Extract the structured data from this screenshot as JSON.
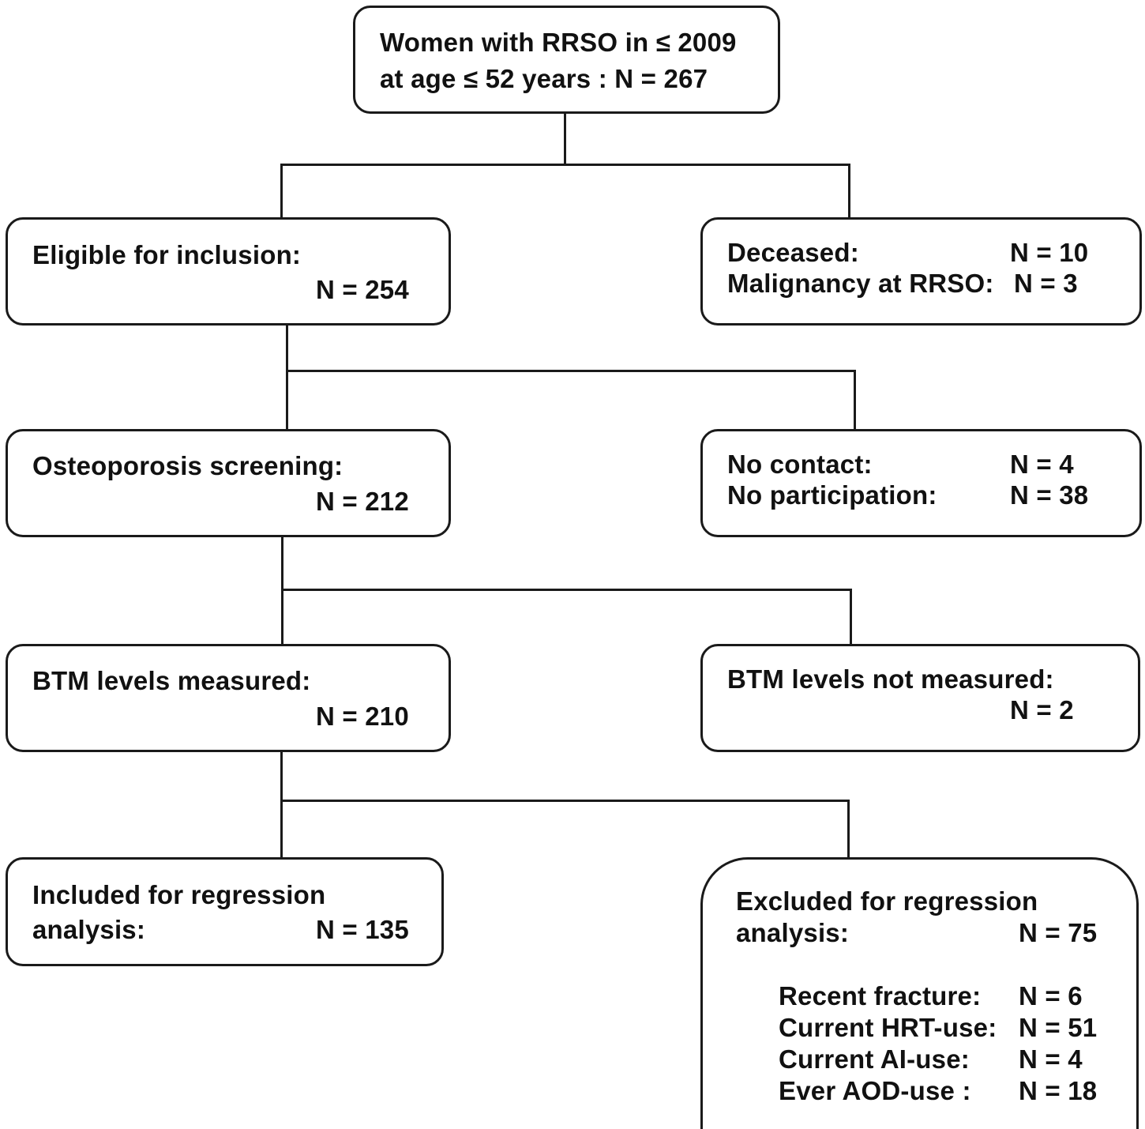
{
  "top": {
    "line1": "Women with RRSO in ≤ 2009",
    "line2": "at age ≤ 52 years : N = 267"
  },
  "eligible": {
    "label": "Eligible for inclusion:",
    "n": "N = 254"
  },
  "deceased": {
    "label1": "Deceased:",
    "n1": "N = 10",
    "label2": "Malignancy at RRSO:",
    "n2": "N = 3"
  },
  "screening": {
    "label": "Osteoporosis screening:",
    "n": "N = 212"
  },
  "no_contact": {
    "label1": "No contact:",
    "n1": "N = 4",
    "label2": "No participation:",
    "n2": "N = 38"
  },
  "btm_measured": {
    "label": "BTM levels measured:",
    "n": "N = 210"
  },
  "btm_not_measured": {
    "label": "BTM levels not measured:",
    "n": "N = 2"
  },
  "included": {
    "line1": "Included for regression",
    "line2": "analysis:",
    "n": "N = 135"
  },
  "excluded": {
    "line1": "Excluded for regression",
    "line2": "analysis:",
    "n": "N = 75",
    "reasons": [
      {
        "label": "Recent fracture:",
        "n": "N = 6"
      },
      {
        "label": "Current HRT-use:",
        "n": "N = 51"
      },
      {
        "label": "Current AI-use:",
        "n": "N = 4"
      },
      {
        "label": "Ever AOD-use :",
        "n": "N = 18"
      }
    ]
  }
}
